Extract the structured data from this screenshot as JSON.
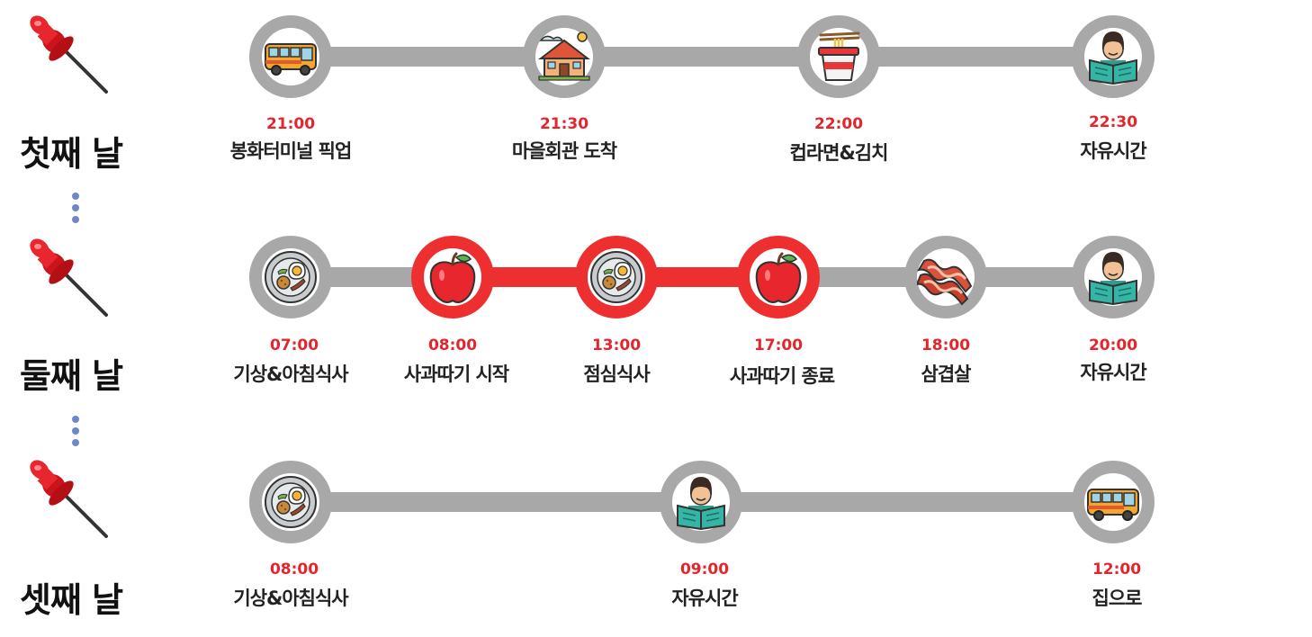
{
  "colors": {
    "gray": "#a8a8a8",
    "red": "#ee2f2f",
    "time": "#e4262c"
  },
  "days": [
    {
      "label": "첫째 날",
      "events": [
        {
          "time": "21:00",
          "label": "봉화터미널 픽업",
          "icon": "bus-icon",
          "highlight": false
        },
        {
          "time": "21:30",
          "label": "마을회관 도착",
          "icon": "village-hall-icon",
          "highlight": false
        },
        {
          "time": "22:00",
          "label": "컵라면&김치",
          "icon": "cup-noodle-icon",
          "highlight": false
        },
        {
          "time": "22:30",
          "label": "자유시간",
          "icon": "reading-person-icon",
          "highlight": false
        }
      ]
    },
    {
      "label": "둘째 날",
      "events": [
        {
          "time": "07:00",
          "label": "기상&아침식사",
          "icon": "meal-plate-icon",
          "highlight": false
        },
        {
          "time": "08:00",
          "label": "사과따기 시작",
          "icon": "apple-icon",
          "highlight": true
        },
        {
          "time": "13:00",
          "label": "점심식사",
          "icon": "meal-plate-icon",
          "highlight": true
        },
        {
          "time": "17:00",
          "label": "사과따기 종료",
          "icon": "apple-icon",
          "highlight": true
        },
        {
          "time": "18:00",
          "label": "삼겹살",
          "icon": "bacon-icon",
          "highlight": false
        },
        {
          "time": "20:00",
          "label": "자유시간",
          "icon": "reading-person-icon",
          "highlight": false
        }
      ]
    },
    {
      "label": "셋째 날",
      "events": [
        {
          "time": "08:00",
          "label": "기상&아침식사",
          "icon": "meal-plate-icon",
          "highlight": false
        },
        {
          "time": "09:00",
          "label": "자유시간",
          "icon": "reading-person-icon",
          "highlight": false
        },
        {
          "time": "12:00",
          "label": "집으로",
          "icon": "bus-icon",
          "highlight": false
        }
      ]
    }
  ]
}
